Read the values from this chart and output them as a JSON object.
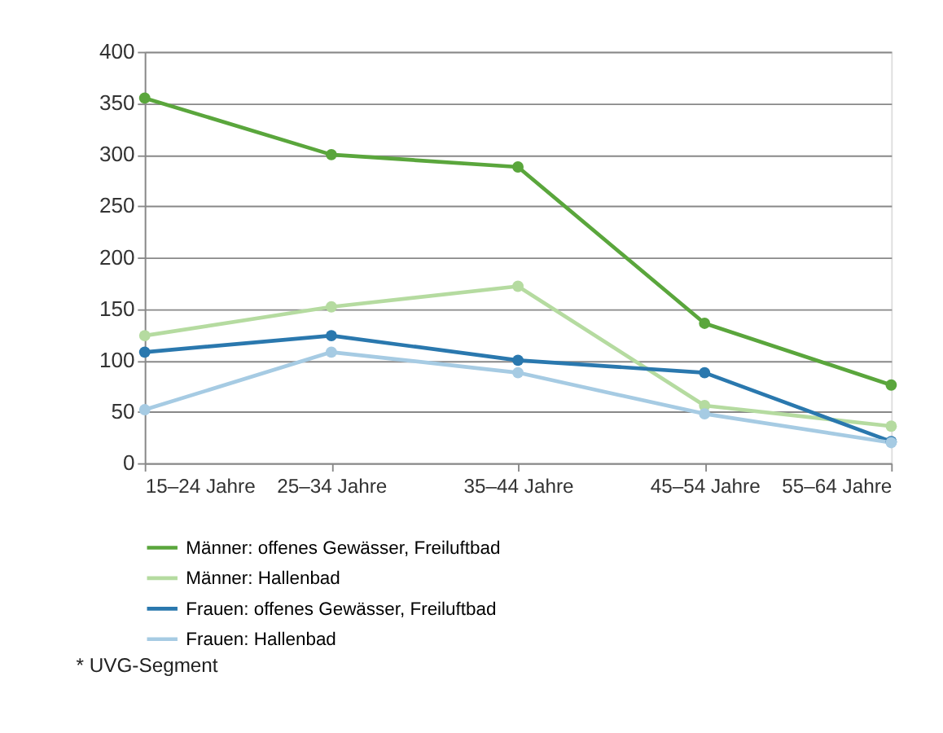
{
  "chart_data": {
    "type": "line",
    "categories": [
      "15–24 Jahre",
      "25–34 Jahre",
      "35–44 Jahre",
      "45–54 Jahre",
      "55–64 Jahre"
    ],
    "series": [
      {
        "name": "Männer: offenes Gewässer, Freiluftbad",
        "color": "#5aa63c",
        "values": [
          355,
          300,
          288,
          136,
          76
        ]
      },
      {
        "name": "Männer: Hallenbad",
        "color": "#b5dba0",
        "values": [
          124,
          152,
          172,
          56,
          36
        ]
      },
      {
        "name": "Frauen: offenes Gewässer, Freiluftbad",
        "color": "#2a78ae",
        "values": [
          108,
          124,
          100,
          88,
          21
        ]
      },
      {
        "name": "Frauen: Hallenbad",
        "color": "#a6cbe3",
        "values": [
          52,
          108,
          88,
          48,
          20
        ]
      }
    ],
    "ylim": [
      0,
      400
    ],
    "yticks": [
      0,
      50,
      100,
      150,
      200,
      250,
      300,
      350,
      400
    ],
    "grid": "y",
    "legend": "bottom",
    "marker": "circle",
    "line_style": "solid",
    "annotations": [
      "* UVG-Segment"
    ]
  }
}
